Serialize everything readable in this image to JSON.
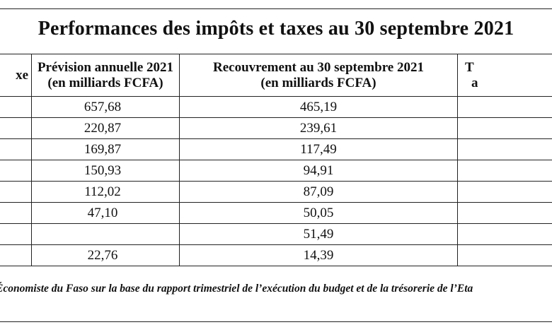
{
  "title": "Performances des impôts et taxes au 30 septembre 2021",
  "table": {
    "headers": {
      "col0_line1": "xe",
      "col0_line2": "",
      "col1_line1": "Prévision annuelle 2021",
      "col1_line2": "(en milliards FCFA)",
      "col2_line1": "Recouvrement au 30 septembre 2021",
      "col2_line2": "(en milliards FCFA)",
      "col3_line1": "T",
      "col3_line2": "a"
    },
    "rows": [
      {
        "label": "",
        "prevision": "657,68",
        "recouvrement": "465,19",
        "taux": ""
      },
      {
        "label": "",
        "prevision": "220,87",
        "recouvrement": "239,61",
        "taux": ""
      },
      {
        "label": "",
        "prevision": "169,87",
        "recouvrement": "117,49",
        "taux": ""
      },
      {
        "label": "",
        "prevision": "150,93",
        "recouvrement": "94,91",
        "taux": ""
      },
      {
        "label": "",
        "prevision": "112,02",
        "recouvrement": "87,09",
        "taux": ""
      },
      {
        "label": "",
        "prevision": "47,10",
        "recouvrement": "50,05",
        "taux": ""
      },
      {
        "label": "",
        "prevision": "",
        "recouvrement": "51,49",
        "taux": ""
      },
      {
        "label": "",
        "prevision": "22,76",
        "recouvrement": "14,39",
        "taux": ""
      }
    ]
  },
  "source": "Économiste du Faso sur la base du rapport trimestriel de l’exécution du budget et de la trésorerie de l’Eta"
}
